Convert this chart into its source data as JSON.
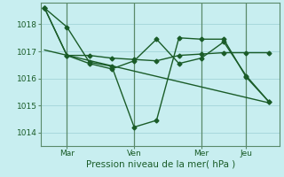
{
  "xlabel": "Pression niveau de la mer( hPa )",
  "background_color": "#c8eef0",
  "plot_bg_color": "#c8eef0",
  "grid_color": "#a8d8dc",
  "line_color": "#1a5c28",
  "vline_color": "#5a8a6a",
  "ylim": [
    1013.5,
    1018.8
  ],
  "xlim": [
    -0.15,
    10.5
  ],
  "xtick_labels": [
    "Mar",
    "Ven",
    "Mer",
    "Jeu"
  ],
  "xtick_positions": [
    1,
    4,
    7,
    9
  ],
  "ytick_values": [
    1014,
    1015,
    1016,
    1017,
    1018
  ],
  "series1_x": [
    0.0,
    1.0,
    2.0,
    3.0,
    4.0,
    5.0,
    6.0,
    7.0,
    8.0,
    9.0,
    10.0
  ],
  "series1_y": [
    1018.6,
    1017.9,
    1016.6,
    1016.45,
    1014.2,
    1014.45,
    1017.5,
    1017.45,
    1017.45,
    1016.05,
    1015.15
  ],
  "series2_x": [
    0.0,
    1.0,
    2.0,
    3.0,
    4.0,
    5.0,
    6.0,
    7.0,
    8.0,
    9.0,
    10.0
  ],
  "series2_y": [
    1018.6,
    1016.85,
    1016.85,
    1016.75,
    1016.7,
    1016.65,
    1016.85,
    1016.9,
    1016.95,
    1016.95,
    1016.95
  ],
  "series3_x": [
    0.0,
    1.0,
    2.0,
    3.0,
    4.0,
    5.0,
    6.0,
    7.0,
    8.0,
    9.0,
    10.0
  ],
  "series3_y": [
    1018.6,
    1016.85,
    1016.55,
    1016.35,
    1016.65,
    1017.45,
    1016.55,
    1016.75,
    1017.35,
    1016.1,
    1015.15
  ],
  "trend_x": [
    0.0,
    10.0
  ],
  "trend_y": [
    1017.05,
    1015.1
  ],
  "vline_positions": [
    1,
    4,
    7,
    9
  ],
  "markersize": 2.5,
  "linewidth": 1.0
}
